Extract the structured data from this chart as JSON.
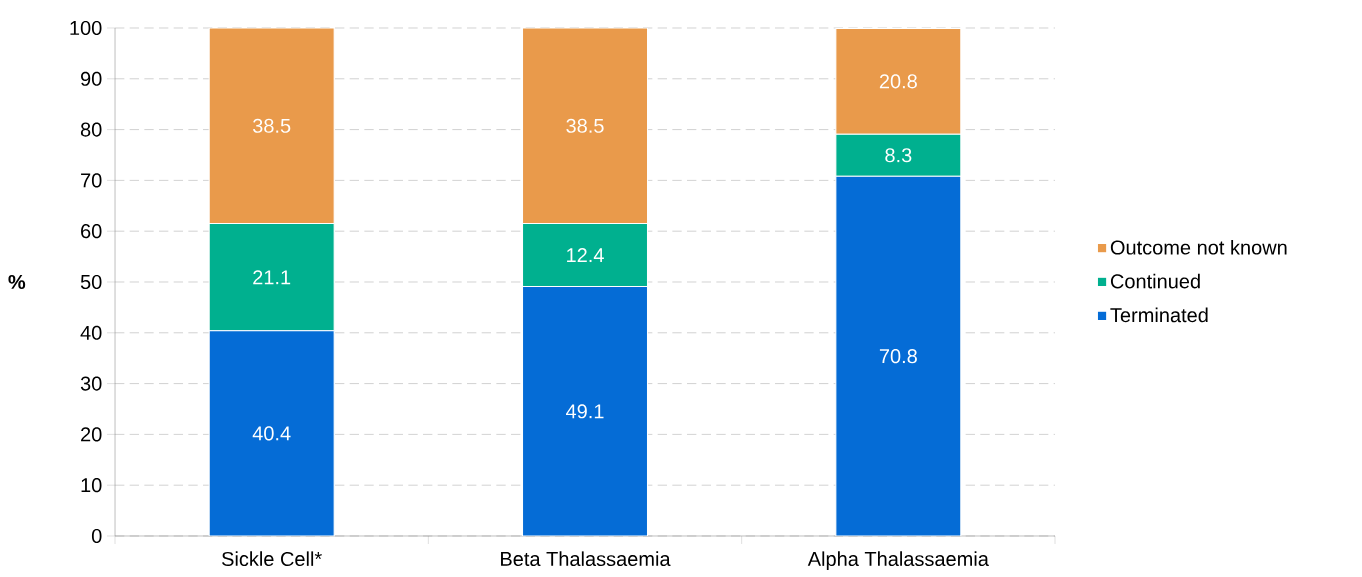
{
  "chart_data": {
    "type": "bar",
    "stacked": true,
    "ylabel": "%",
    "categories": [
      "Sickle Cell*",
      "Beta Thalassaemia",
      "Alpha Thalassaemia"
    ],
    "series": [
      {
        "name": "Terminated",
        "color": "#056cd6",
        "values": [
          40.4,
          49.1,
          70.8
        ]
      },
      {
        "name": "Continued",
        "color": "#00b08f",
        "values": [
          21.1,
          12.4,
          8.3
        ]
      },
      {
        "name": "Outcome not known",
        "color": "#e99a4b",
        "values": [
          38.5,
          38.5,
          20.8
        ]
      }
    ],
    "ylim": [
      0,
      100
    ],
    "yticks": [
      0,
      10,
      20,
      30,
      40,
      50,
      60,
      70,
      80,
      90,
      100
    ],
    "grid": "y",
    "legend": "right",
    "data_labels": true
  }
}
